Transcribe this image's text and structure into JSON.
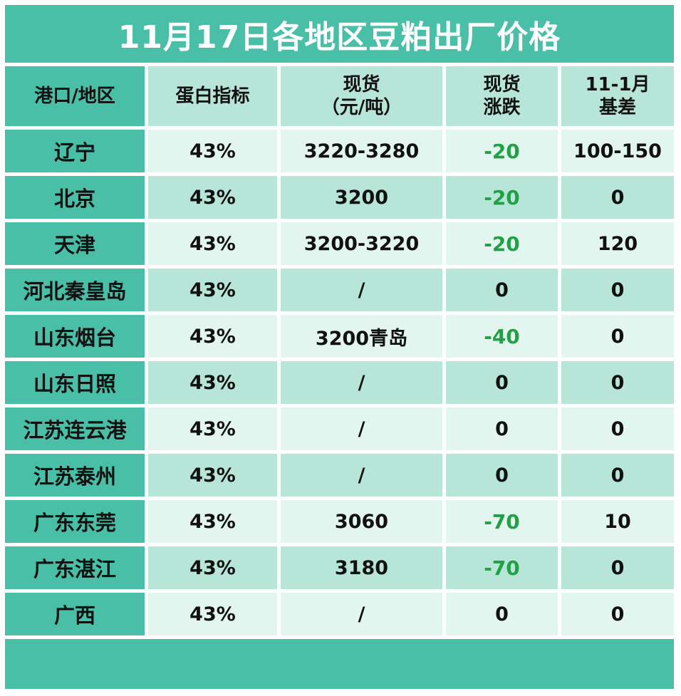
{
  "title": "11月17日各地区豆粕出厂价格",
  "colors": {
    "accent": "#4abfa7",
    "light_row": "#e3f5ef",
    "mid_row": "#b7e6d8",
    "negative": "#22a045"
  },
  "headers": {
    "region": "港口/地区",
    "protein": "蛋白指标",
    "spot_line1": "现货",
    "spot_line2": "（元/吨）",
    "change_line1": "现货",
    "change_line2": "涨跌",
    "basis_line1": "11-1月",
    "basis_line2": "基差"
  },
  "rows": [
    {
      "region": "辽宁",
      "protein": "43%",
      "spot": "3220-3280",
      "change": "-20",
      "basis": "100-150"
    },
    {
      "region": "北京",
      "protein": "43%",
      "spot": "3200",
      "change": "-20",
      "basis": "0"
    },
    {
      "region": "天津",
      "protein": "43%",
      "spot": "3200-3220",
      "change": "-20",
      "basis": "120"
    },
    {
      "region": "河北秦皇岛",
      "protein": "43%",
      "spot": "/",
      "change": "0",
      "basis": "0"
    },
    {
      "region": "山东烟台",
      "protein": "43%",
      "spot": "3200青岛",
      "change": "-40",
      "basis": "0"
    },
    {
      "region": "山东日照",
      "protein": "43%",
      "spot": "/",
      "change": "0",
      "basis": "0"
    },
    {
      "region": "江苏连云港",
      "protein": "43%",
      "spot": "/",
      "change": "0",
      "basis": "0"
    },
    {
      "region": "江苏泰州",
      "protein": "43%",
      "spot": "/",
      "change": "0",
      "basis": "0"
    },
    {
      "region": "广东东莞",
      "protein": "43%",
      "spot": "3060",
      "change": "-70",
      "basis": "10"
    },
    {
      "region": "广东湛江",
      "protein": "43%",
      "spot": "3180",
      "change": "-70",
      "basis": "0"
    },
    {
      "region": "广西",
      "protein": "43%",
      "spot": "/",
      "change": "0",
      "basis": "0"
    }
  ]
}
